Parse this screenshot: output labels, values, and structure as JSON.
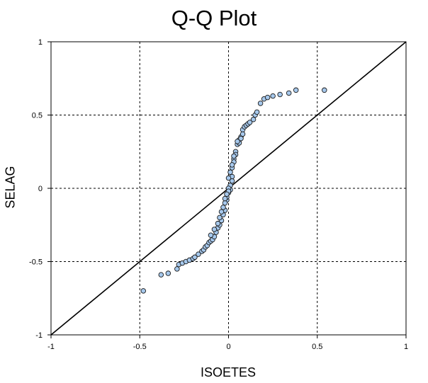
{
  "chart_data": {
    "type": "scatter",
    "title": "Q-Q Plot",
    "xlabel": "ISOETES",
    "ylabel": "SELAG",
    "xlim": [
      -1,
      1
    ],
    "ylim": [
      -1,
      1
    ],
    "xticks": [
      "-1",
      "-0.5",
      "0",
      "0.5",
      "1"
    ],
    "yticks": [
      "1",
      "0.5",
      "0",
      "-0.5",
      "-1"
    ],
    "grid": true,
    "grid_style": "dashed",
    "reference_line": {
      "from": [
        -1,
        -1
      ],
      "to": [
        1,
        1
      ]
    },
    "marker_color": "#a6c8ec",
    "marker_edge": "#1a1a1a",
    "series": [
      {
        "x": [
          -0.48,
          -0.38,
          -0.34,
          -0.29,
          -0.28,
          -0.26,
          -0.24,
          -0.22,
          -0.2,
          -0.19,
          -0.17,
          -0.15,
          -0.14,
          -0.13,
          -0.12,
          -0.11,
          -0.1,
          -0.09,
          -0.08,
          -0.07,
          -0.06,
          -0.05,
          -0.04,
          -0.03,
          -0.02,
          -0.01,
          0.0,
          0.01,
          0.02,
          0.02,
          0.03,
          0.04,
          0.05,
          0.06,
          0.07,
          0.08,
          0.09,
          0.1,
          0.11,
          0.12,
          0.14,
          0.15,
          0.16,
          0.18,
          0.2,
          0.22,
          0.25,
          0.29,
          0.34,
          0.38,
          0.54,
          -0.01,
          0.01,
          -0.02,
          0.02,
          0.0,
          -0.03,
          0.03,
          0.04,
          0.06,
          0.07,
          0.08,
          -0.05,
          -0.06,
          -0.08,
          -0.1,
          0.01,
          0.0,
          -0.02,
          0.02,
          0.03,
          0.05,
          -0.04,
          -0.01,
          0.0
        ],
        "y": [
          -0.7,
          -0.59,
          -0.58,
          -0.55,
          -0.52,
          -0.51,
          -0.5,
          -0.49,
          -0.48,
          -0.47,
          -0.45,
          -0.43,
          -0.42,
          -0.4,
          -0.39,
          -0.37,
          -0.36,
          -0.35,
          -0.33,
          -0.3,
          -0.27,
          -0.25,
          -0.22,
          -0.18,
          -0.15,
          -0.08,
          -0.03,
          0.02,
          0.08,
          0.14,
          0.2,
          0.25,
          0.3,
          0.33,
          0.35,
          0.4,
          0.42,
          0.43,
          0.44,
          0.45,
          0.47,
          0.5,
          0.52,
          0.58,
          0.61,
          0.62,
          0.63,
          0.64,
          0.65,
          0.67,
          0.67,
          -0.06,
          -0.01,
          -0.1,
          0.05,
          0.0,
          -0.13,
          0.18,
          0.23,
          0.31,
          0.34,
          0.37,
          -0.2,
          -0.24,
          -0.28,
          -0.32,
          0.11,
          -0.02,
          -0.07,
          0.16,
          0.22,
          0.32,
          -0.16,
          -0.04,
          0.07
        ]
      }
    ]
  }
}
